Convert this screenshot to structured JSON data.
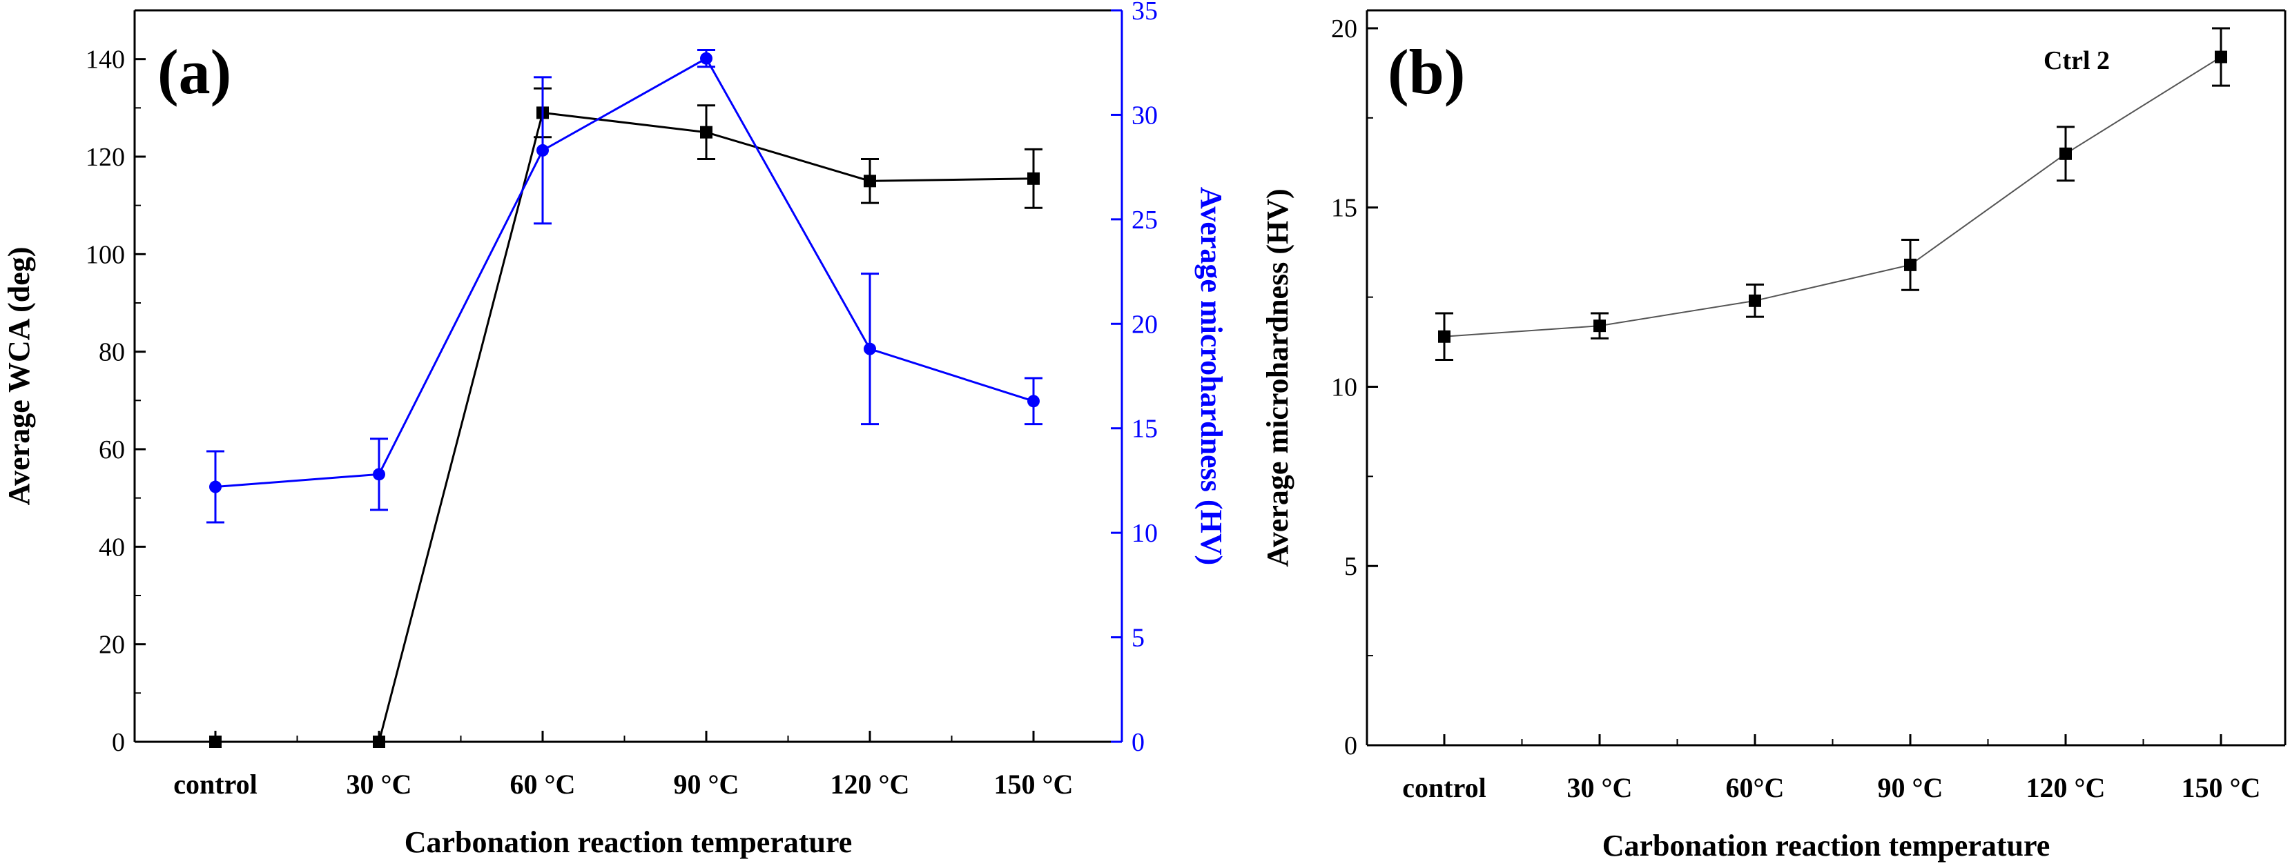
{
  "chart_data": [
    {
      "type": "line",
      "panel_label": "(a)",
      "categories": [
        "control",
        "30 °C",
        "60 °C",
        "90 °C",
        "120 °C",
        "150 °C"
      ],
      "xlabel": "Carbonation reaction temperature",
      "ylabel": "Average WCA (deg)",
      "y2label": "Average microhardness (HV)",
      "ylim": [
        0,
        150
      ],
      "y2lim": [
        0,
        35
      ],
      "yticks": [
        0,
        20,
        40,
        60,
        80,
        100,
        120,
        140
      ],
      "y2ticks": [
        0,
        5,
        10,
        15,
        20,
        25,
        30,
        35
      ],
      "grid": false,
      "series": [
        {
          "axis": "left",
          "color": "#000000",
          "marker": "square",
          "values": [
            0,
            0,
            129,
            125,
            115,
            115.5
          ],
          "errors": [
            0,
            0,
            5,
            5.5,
            4.5,
            6
          ]
        },
        {
          "axis": "right",
          "color": "#0000ff",
          "marker": "circle",
          "values": [
            12.2,
            12.8,
            28.3,
            32.7,
            18.8,
            16.3
          ],
          "errors": [
            1.7,
            1.7,
            3.5,
            0.4,
            3.6,
            1.1
          ]
        }
      ]
    },
    {
      "type": "line",
      "panel_label": "(b)",
      "annotation": "Ctrl 2",
      "categories": [
        "control",
        "30 °C",
        "60°C",
        "90 °C",
        "120 °C",
        "150 °C"
      ],
      "xlabel": "Carbonation reaction temperature",
      "ylabel": "Average microhardness (HV)",
      "ylim": [
        0,
        20.5
      ],
      "yticks": [
        0,
        5,
        10,
        15,
        20
      ],
      "grid": false,
      "series": [
        {
          "axis": "left",
          "color": "#000000",
          "marker": "square",
          "values": [
            11.4,
            11.7,
            12.4,
            13.4,
            16.5,
            19.2
          ],
          "errors": [
            0.65,
            0.35,
            0.45,
            0.7,
            0.75,
            0.8
          ]
        }
      ]
    }
  ]
}
